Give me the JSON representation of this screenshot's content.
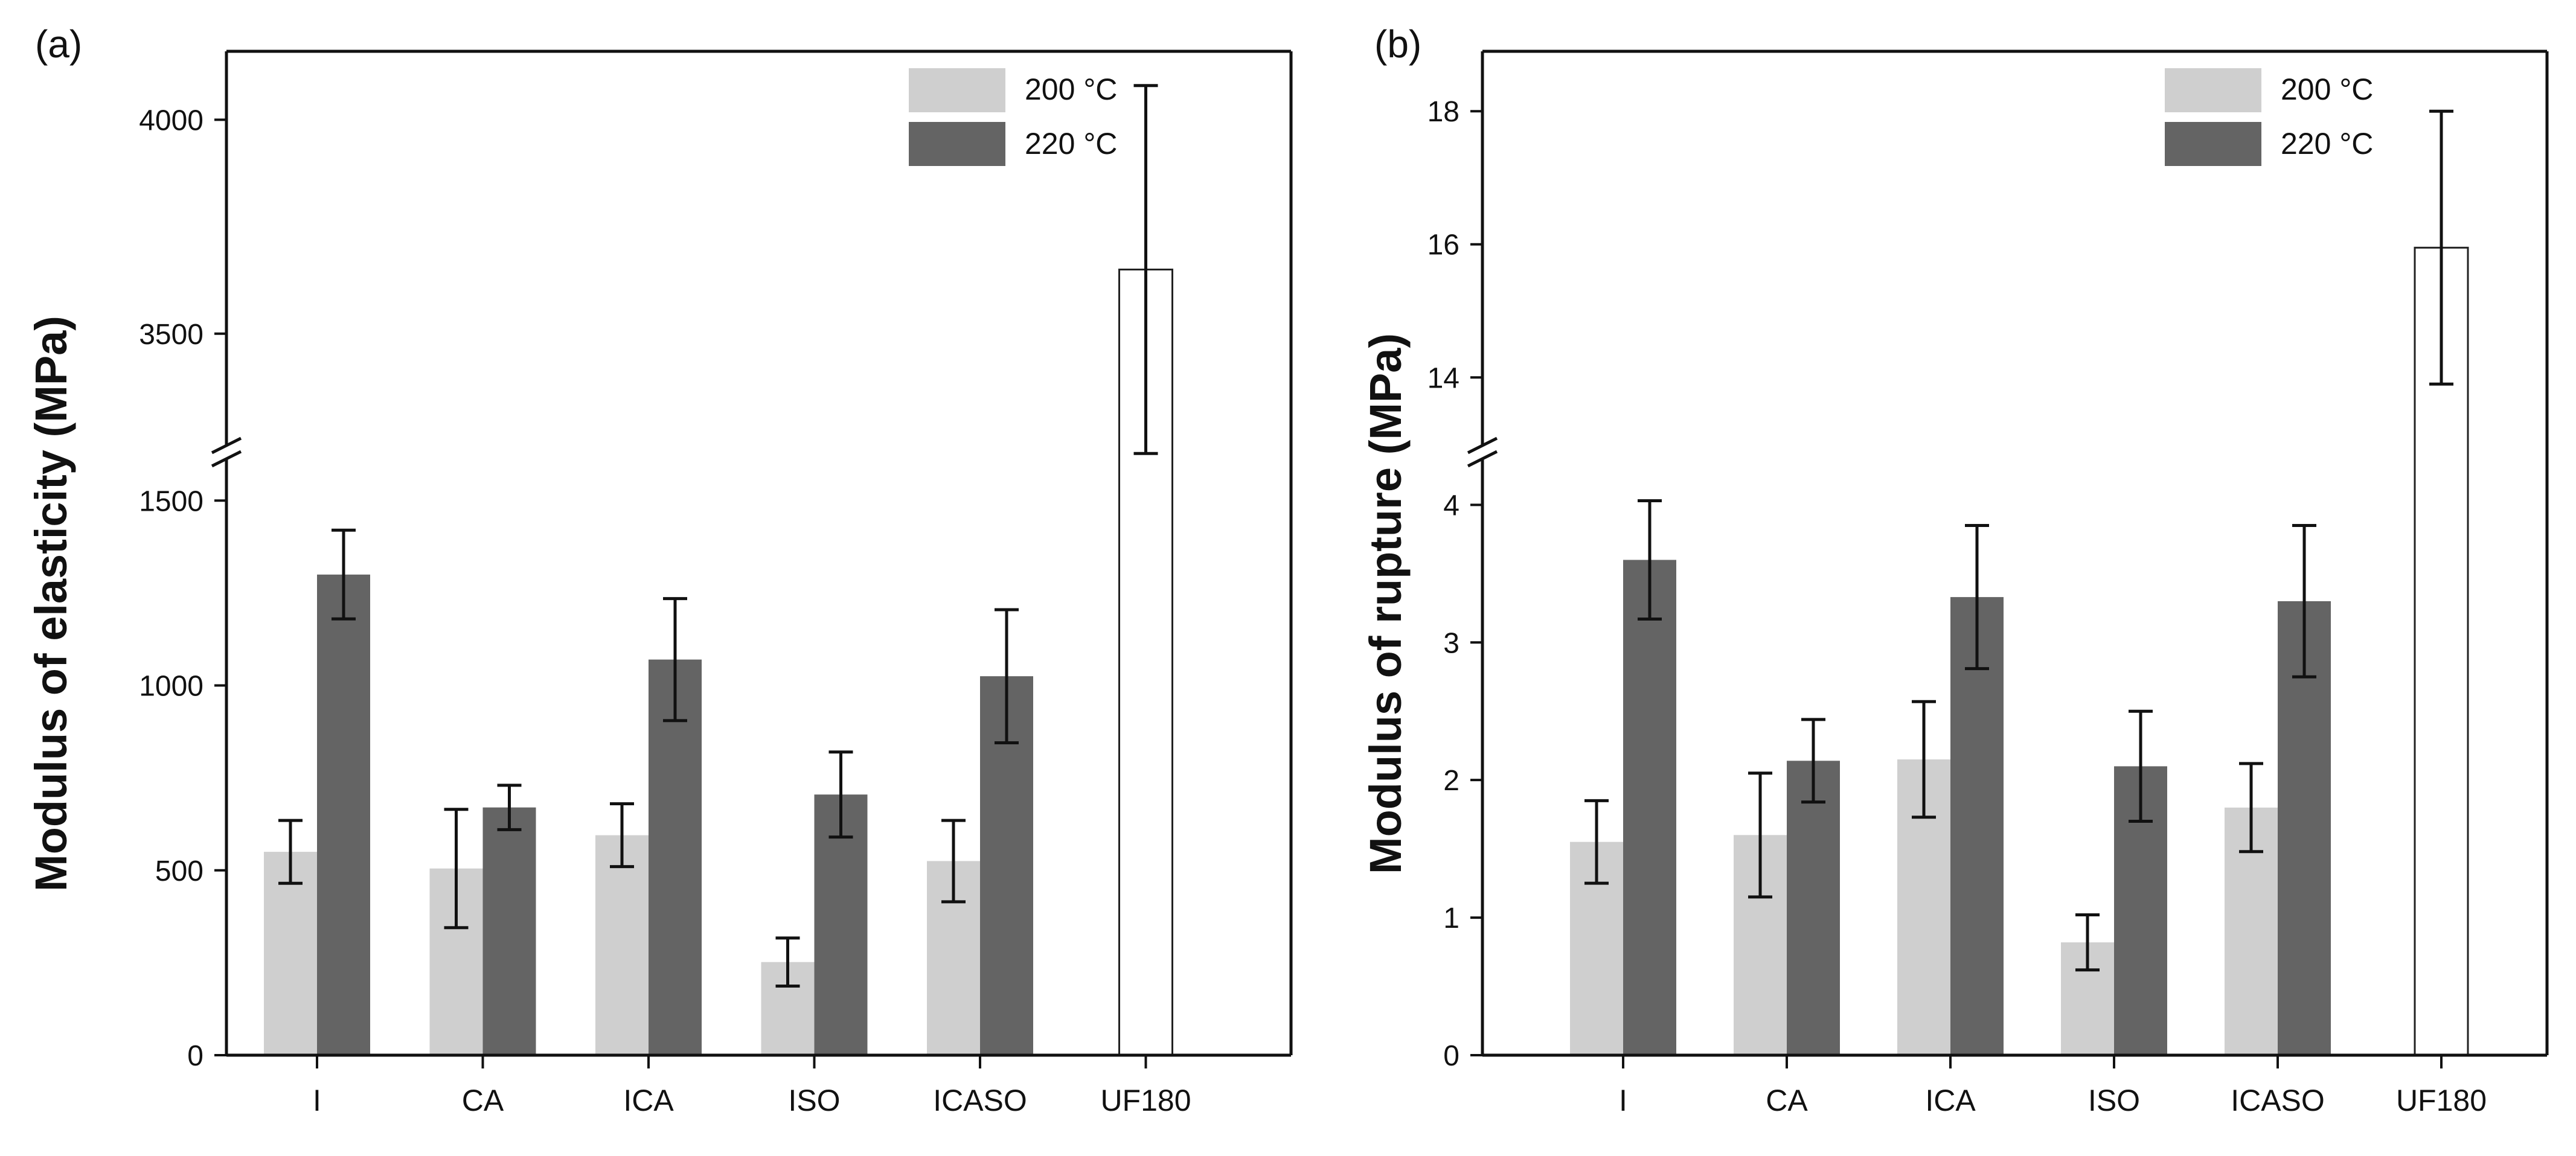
{
  "chart_data": [
    {
      "panel_label": "(a)",
      "type": "bar",
      "ylabel": "Modulus of elasticity (MPa)",
      "categories": [
        "I",
        "CA",
        "ICA",
        "ISO",
        "ICASO",
        "UF180"
      ],
      "series": [
        {
          "name": "200 °C",
          "color": "#cfcfcf",
          "values": [
            550,
            505,
            595,
            252,
            525,
            null
          ],
          "errors": [
            85,
            160,
            85,
            65,
            110,
            null
          ]
        },
        {
          "name": "220 °C",
          "color": "#646464",
          "values": [
            1300,
            670,
            1070,
            705,
            1025,
            null
          ],
          "errors": [
            120,
            60,
            165,
            115,
            180,
            null
          ]
        },
        {
          "name": "UF180",
          "color": "#ffffff",
          "values": [
            null,
            null,
            null,
            null,
            null,
            3650
          ],
          "errors": [
            null,
            null,
            null,
            null,
            null,
            430
          ]
        }
      ],
      "yaxis": {
        "broken": true,
        "lower_range": [
          0,
          1600
        ],
        "upper_range": [
          3250,
          4160
        ],
        "ticks": [
          0,
          500,
          1000,
          1500,
          3500,
          4000
        ],
        "tick_labels": [
          "0",
          "500",
          "1000",
          "1500",
          "3500",
          "4000"
        ]
      },
      "legend": {
        "position": "top-right",
        "entries": [
          "200 °C",
          "220 °C"
        ]
      }
    },
    {
      "panel_label": "(b)",
      "type": "bar",
      "ylabel": "Modulus of rupture (MPa)",
      "categories": [
        "I",
        "CA",
        "ICA",
        "ISO",
        "ICASO",
        "UF180"
      ],
      "series": [
        {
          "name": "200 °C",
          "color": "#cfcfcf",
          "values": [
            1.55,
            1.6,
            2.15,
            0.82,
            1.8,
            null
          ],
          "errors": [
            0.3,
            0.45,
            0.42,
            0.2,
            0.32,
            null
          ]
        },
        {
          "name": "220 °C",
          "color": "#646464",
          "values": [
            3.6,
            2.14,
            3.33,
            2.1,
            3.3,
            null
          ],
          "errors": [
            0.43,
            0.3,
            0.52,
            0.4,
            0.55,
            null
          ]
        },
        {
          "name": "UF180",
          "color": "#ffffff",
          "values": [
            null,
            null,
            null,
            null,
            null,
            15.95
          ],
          "errors": [
            null,
            null,
            null,
            null,
            null,
            2.05
          ]
        }
      ],
      "yaxis": {
        "broken": true,
        "lower_range": [
          0,
          4.3
        ],
        "upper_range": [
          13.05,
          18.9
        ],
        "ticks": [
          0,
          1,
          2,
          3,
          4,
          14,
          16,
          18
        ],
        "tick_labels": [
          "0",
          "1",
          "2",
          "3",
          "4",
          "14",
          "16",
          "18"
        ]
      },
      "legend": {
        "position": "top-right",
        "entries": [
          "200 °C",
          "220 °C"
        ]
      }
    }
  ]
}
